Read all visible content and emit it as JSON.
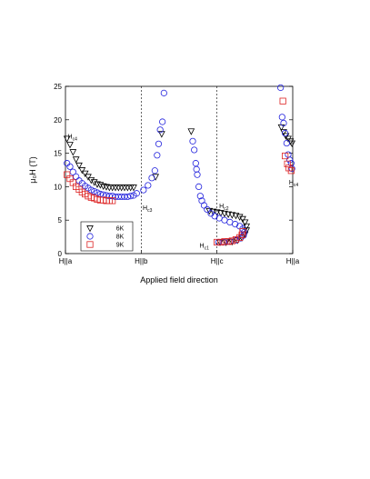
{
  "chart_data": {
    "type": "scatter",
    "xlabel": "Applied field direction",
    "ylabel": "μ₀H (T)",
    "ylim": [
      0,
      25
    ],
    "yticks": [
      0,
      5,
      10,
      15,
      20,
      25
    ],
    "xlim": [
      0,
      3
    ],
    "x_tick_labels": [
      {
        "x": 0,
        "label": "H||a"
      },
      {
        "x": 1,
        "label": "H||b"
      },
      {
        "x": 2,
        "label": "H||c"
      },
      {
        "x": 3,
        "label": "H||a"
      }
    ],
    "grid": false,
    "vertical_reference_lines": [
      1,
      2
    ],
    "legend_position": "bottom-left",
    "annotations": [
      {
        "text": "H",
        "sub": "c4",
        "x": 0.03,
        "y": 17.2
      },
      {
        "text": "H",
        "sub": "c3",
        "x": 1.02,
        "y": 6.5
      },
      {
        "text": "H",
        "sub": "c2",
        "x": 2.03,
        "y": 6.8
      },
      {
        "text": "H",
        "sub": "c1",
        "x": 1.77,
        "y": 0.9
      },
      {
        "text": "H",
        "sub": "c4",
        "x": 2.95,
        "y": 10.3
      }
    ],
    "series": [
      {
        "name": "6K",
        "marker": "triangle-down",
        "color": "#000000",
        "points": [
          [
            0.02,
            17.2
          ],
          [
            0.06,
            16.3
          ],
          [
            0.1,
            15.2
          ],
          [
            0.14,
            14.1
          ],
          [
            0.18,
            13.2
          ],
          [
            0.22,
            12.5
          ],
          [
            0.26,
            12.0
          ],
          [
            0.3,
            11.5
          ],
          [
            0.34,
            11.0
          ],
          [
            0.38,
            10.7
          ],
          [
            0.42,
            10.4
          ],
          [
            0.46,
            10.3
          ],
          [
            0.5,
            10.1
          ],
          [
            0.54,
            10.0
          ],
          [
            0.58,
            9.9
          ],
          [
            0.62,
            9.9
          ],
          [
            0.66,
            9.9
          ],
          [
            0.7,
            9.9
          ],
          [
            0.74,
            9.9
          ],
          [
            0.78,
            9.9
          ],
          [
            0.82,
            9.9
          ],
          [
            0.86,
            9.9
          ],
          [
            0.9,
            9.9
          ],
          [
            1.19,
            11.5
          ],
          [
            1.27,
            17.9
          ],
          [
            1.66,
            18.3
          ],
          [
            1.9,
            6.4
          ],
          [
            1.95,
            6.3
          ],
          [
            2.0,
            6.2
          ],
          [
            2.05,
            6.1
          ],
          [
            2.1,
            6.0
          ],
          [
            2.15,
            5.9
          ],
          [
            2.2,
            5.8
          ],
          [
            2.25,
            5.7
          ],
          [
            2.3,
            5.5
          ],
          [
            2.34,
            5.2
          ],
          [
            2.37,
            4.7
          ],
          [
            2.39,
            4.1
          ],
          [
            2.39,
            3.5
          ],
          [
            2.37,
            2.9
          ],
          [
            2.33,
            2.4
          ],
          [
            2.27,
            2.0
          ],
          [
            2.2,
            1.8
          ],
          [
            2.12,
            1.7
          ],
          [
            2.04,
            1.7
          ],
          [
            2.85,
            18.9
          ],
          [
            2.88,
            18.2
          ],
          [
            2.91,
            17.6
          ],
          [
            2.94,
            17.2
          ],
          [
            2.97,
            16.8
          ],
          [
            2.99,
            16.5
          ]
        ]
      },
      {
        "name": "8K",
        "marker": "circle",
        "color": "#2222dd",
        "points": [
          [
            0.02,
            13.5
          ],
          [
            0.06,
            13.0
          ],
          [
            0.1,
            12.2
          ],
          [
            0.14,
            11.5
          ],
          [
            0.18,
            10.9
          ],
          [
            0.22,
            10.5
          ],
          [
            0.26,
            10.1
          ],
          [
            0.3,
            9.8
          ],
          [
            0.34,
            9.5
          ],
          [
            0.38,
            9.3
          ],
          [
            0.42,
            9.1
          ],
          [
            0.46,
            8.9
          ],
          [
            0.5,
            8.8
          ],
          [
            0.54,
            8.7
          ],
          [
            0.58,
            8.6
          ],
          [
            0.62,
            8.6
          ],
          [
            0.66,
            8.5
          ],
          [
            0.7,
            8.5
          ],
          [
            0.74,
            8.5
          ],
          [
            0.78,
            8.5
          ],
          [
            0.82,
            8.5
          ],
          [
            0.86,
            8.6
          ],
          [
            0.9,
            8.7
          ],
          [
            0.94,
            9.0
          ],
          [
            1.03,
            9.5
          ],
          [
            1.09,
            10.2
          ],
          [
            1.14,
            11.3
          ],
          [
            1.18,
            12.4
          ],
          [
            1.21,
            14.7
          ],
          [
            1.23,
            16.4
          ],
          [
            1.25,
            18.5
          ],
          [
            1.28,
            19.7
          ],
          [
            1.3,
            24.0
          ],
          [
            1.68,
            16.8
          ],
          [
            1.7,
            15.5
          ],
          [
            1.72,
            13.5
          ],
          [
            1.73,
            12.6
          ],
          [
            1.74,
            11.8
          ],
          [
            1.76,
            10.0
          ],
          [
            1.78,
            8.6
          ],
          [
            1.8,
            7.9
          ],
          [
            1.83,
            7.2
          ],
          [
            1.87,
            6.6
          ],
          [
            1.92,
            6.0
          ],
          [
            1.97,
            5.6
          ],
          [
            2.03,
            5.3
          ],
          [
            2.1,
            5.0
          ],
          [
            2.17,
            4.7
          ],
          [
            2.24,
            4.4
          ],
          [
            2.3,
            4.1
          ],
          [
            2.34,
            3.7
          ],
          [
            2.36,
            3.2
          ],
          [
            2.35,
            2.7
          ],
          [
            2.31,
            2.3
          ],
          [
            2.25,
            2.0
          ],
          [
            2.17,
            1.8
          ],
          [
            2.09,
            1.7
          ],
          [
            2.02,
            1.7
          ],
          [
            2.84,
            24.8
          ],
          [
            2.86,
            20.4
          ],
          [
            2.88,
            19.5
          ],
          [
            2.9,
            18.0
          ],
          [
            2.92,
            16.5
          ],
          [
            2.94,
            14.8
          ],
          [
            2.96,
            14.0
          ],
          [
            2.98,
            13.5
          ],
          [
            2.99,
            12.7
          ]
        ]
      },
      {
        "name": "9K",
        "marker": "square",
        "color": "#dd2222",
        "points": [
          [
            0.02,
            11.8
          ],
          [
            0.06,
            11.2
          ],
          [
            0.1,
            10.6
          ],
          [
            0.14,
            10.0
          ],
          [
            0.18,
            9.6
          ],
          [
            0.22,
            9.2
          ],
          [
            0.26,
            8.9
          ],
          [
            0.3,
            8.6
          ],
          [
            0.34,
            8.4
          ],
          [
            0.38,
            8.3
          ],
          [
            0.42,
            8.1
          ],
          [
            0.46,
            8.0
          ],
          [
            0.5,
            8.0
          ],
          [
            0.54,
            7.9
          ],
          [
            0.58,
            7.9
          ],
          [
            0.62,
            7.9
          ],
          [
            2.0,
            1.7
          ],
          [
            2.05,
            1.7
          ],
          [
            2.1,
            1.8
          ],
          [
            2.15,
            1.8
          ],
          [
            2.2,
            1.9
          ],
          [
            2.25,
            2.1
          ],
          [
            2.3,
            2.4
          ],
          [
            2.33,
            2.8
          ],
          [
            2.34,
            3.3
          ],
          [
            2.87,
            22.8
          ],
          [
            2.9,
            14.6
          ],
          [
            2.93,
            13.4
          ],
          [
            2.95,
            12.8
          ],
          [
            2.98,
            12.4
          ]
        ]
      }
    ]
  }
}
